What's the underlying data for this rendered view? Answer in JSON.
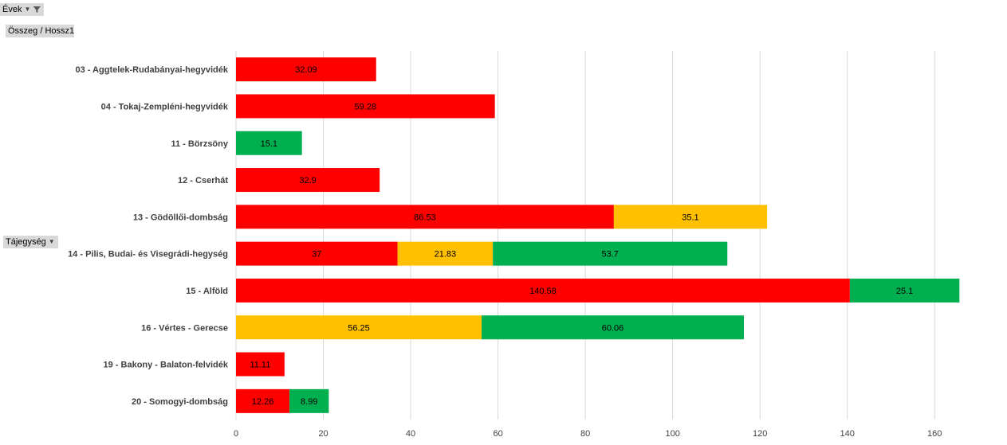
{
  "filter_field": {
    "label": "Évek",
    "icon": "filter-funnel-icon"
  },
  "value_field": {
    "label": "Összeg / Hossz1"
  },
  "row_field": {
    "label": "Tájegység",
    "icon": "dropdown-arrow-icon"
  },
  "colors": {
    "red": "#ff0000",
    "yellow": "#ffc000",
    "green": "#00b050",
    "grid": "#d9d9d9"
  },
  "chart_data": {
    "type": "bar",
    "orientation": "horizontal",
    "stacked": true,
    "categories": [
      "03 - Aggtelek-Rudabányai-hegyvidék",
      "04 - Tokaj-Zempléni-hegyvidék",
      "11 - Börzsöny",
      "12 - Cserhát",
      "13 - Gödöllői-dombság",
      "14 - Pilis, Budai- és Visegrádi-hegység",
      "15 - Alföld",
      "16 - Vértes - Gerecse",
      "19 - Bakony - Balaton-felvidék",
      "20 - Somogyi-dombság"
    ],
    "series": [
      {
        "color": "#ff0000",
        "values": [
          32.09,
          59.28,
          null,
          32.9,
          86.53,
          37,
          140.58,
          null,
          11.11,
          12.26
        ]
      },
      {
        "color": "#ffc000",
        "values": [
          null,
          null,
          null,
          null,
          35.1,
          21.83,
          null,
          56.25,
          null,
          null
        ]
      },
      {
        "color": "#00b050",
        "values": [
          null,
          null,
          15.1,
          null,
          null,
          53.7,
          25.1,
          60.06,
          null,
          8.99
        ]
      }
    ],
    "xlim": [
      0,
      170
    ],
    "xticks": [
      0,
      20,
      40,
      60,
      80,
      100,
      120,
      140,
      160
    ],
    "grid": true,
    "data_labels": true
  }
}
